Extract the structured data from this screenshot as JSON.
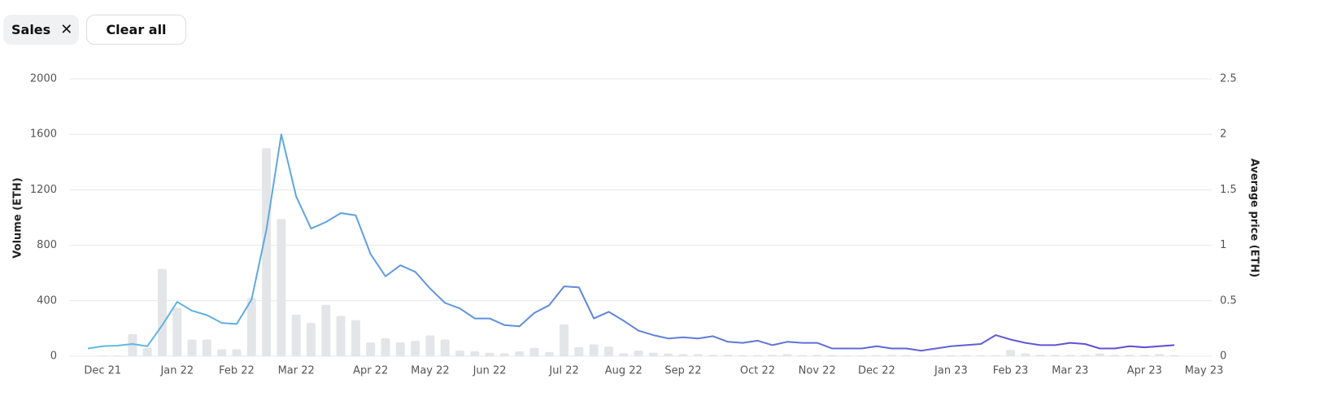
{
  "filters": {
    "active": "Sales",
    "clear": "Clear all"
  },
  "chart_data": {
    "type": "bar-line",
    "ylabel": "Volume (ETH)",
    "y2label": "Average price (ETH)",
    "ylim": [
      0,
      2000
    ],
    "yticks": [
      0,
      400,
      800,
      1200,
      1600,
      2000
    ],
    "y2lim": [
      0,
      2.5
    ],
    "y2ticks": [
      0,
      0.5,
      1,
      1.5,
      2,
      2.5
    ],
    "grid": true,
    "categories": [
      null,
      "Dec 21",
      null,
      null,
      null,
      null,
      "Jan 22",
      null,
      null,
      null,
      "Feb 22",
      null,
      null,
      null,
      "Mar 22",
      null,
      null,
      null,
      null,
      "Apr 22",
      null,
      null,
      null,
      "May 22",
      null,
      null,
      null,
      "Jun 22",
      null,
      null,
      null,
      null,
      "Jul 22",
      null,
      null,
      null,
      "Aug 22",
      null,
      null,
      null,
      "Sep 22",
      null,
      null,
      null,
      null,
      "Oct 22",
      null,
      null,
      null,
      "Nov 22",
      null,
      null,
      null,
      "Dec 22",
      null,
      null,
      null,
      null,
      "Jan 23",
      null,
      null,
      null,
      "Feb 23",
      null,
      null,
      null,
      "Mar 23",
      null,
      null,
      null,
      null,
      "Apr 23",
      null,
      null,
      null,
      "May 23"
    ],
    "series": [
      {
        "name": "Volume",
        "type": "bar",
        "color": "#e4e5e8",
        "values": [
          0,
          5,
          5,
          160,
          60,
          630,
          350,
          120,
          120,
          50,
          50,
          420,
          1500,
          990,
          300,
          240,
          370,
          290,
          260,
          100,
          130,
          100,
          110,
          150,
          120,
          40,
          35,
          25,
          20,
          35,
          60,
          30,
          230,
          65,
          85,
          70,
          20,
          40,
          25,
          20,
          15,
          15,
          10,
          10,
          8,
          8,
          10,
          15,
          8,
          10,
          8,
          5,
          5,
          8,
          10,
          8,
          5,
          5,
          8,
          8,
          8,
          8,
          45,
          20,
          10,
          10,
          10,
          10,
          20,
          10,
          10,
          10,
          15,
          8,
          null,
          null
        ]
      },
      {
        "name": "Average price",
        "type": "line",
        "axis": "y2",
        "color": [
          "#5fbce3",
          "#6048d2"
        ],
        "values": [
          0.07,
          0.09,
          0.095,
          0.11,
          0.09,
          0.28,
          0.49,
          0.41,
          0.37,
          0.3,
          0.29,
          0.51,
          1.14,
          2.0,
          1.44,
          1.15,
          1.21,
          1.29,
          1.27,
          0.92,
          0.72,
          0.82,
          0.76,
          0.61,
          0.48,
          0.43,
          0.34,
          0.34,
          0.28,
          0.27,
          0.39,
          0.46,
          0.63,
          0.62,
          0.34,
          0.4,
          0.32,
          0.23,
          0.19,
          0.16,
          0.17,
          0.16,
          0.18,
          0.13,
          0.12,
          0.14,
          0.1,
          0.13,
          0.12,
          0.12,
          0.07,
          0.07,
          0.07,
          0.09,
          0.07,
          0.07,
          0.05,
          0.07,
          0.09,
          0.1,
          0.11,
          0.19,
          0.15,
          0.12,
          0.1,
          0.1,
          0.12,
          0.11,
          0.07,
          0.07,
          0.09,
          0.08,
          0.09,
          0.1,
          null,
          null
        ]
      }
    ]
  }
}
